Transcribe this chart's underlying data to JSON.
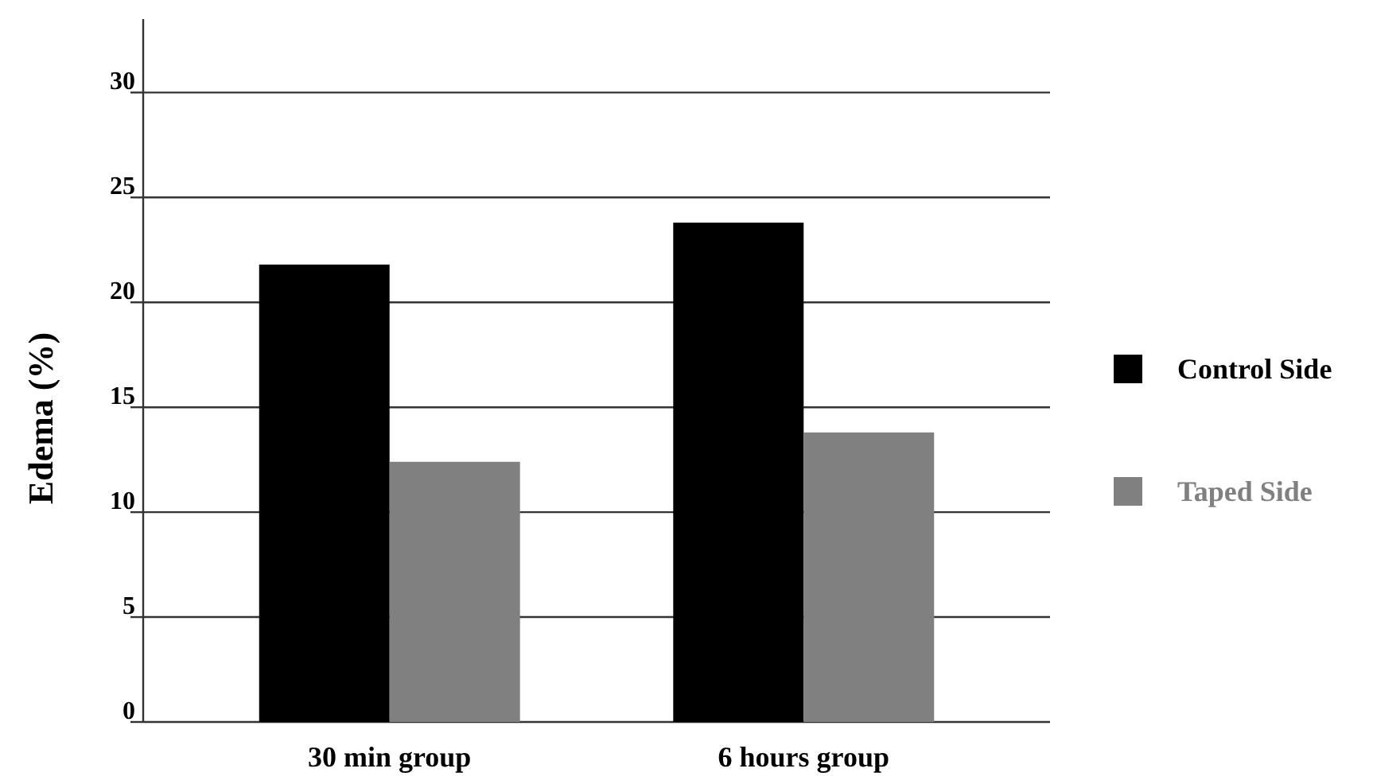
{
  "chart_data": {
    "type": "bar",
    "ylabel": "Edema (%)",
    "categories": [
      "30 min group",
      "6 hours group"
    ],
    "series": [
      {
        "name": "Control Side",
        "color": "#000000",
        "values": [
          21.8,
          23.8
        ]
      },
      {
        "name": "Taped Side",
        "color": "#808080",
        "values": [
          12.4,
          13.8
        ]
      }
    ],
    "ylim": [
      0,
      33.5
    ],
    "yticks": [
      0,
      5,
      10,
      15,
      20,
      25,
      30
    ],
    "grid": "y",
    "legend": "right"
  }
}
